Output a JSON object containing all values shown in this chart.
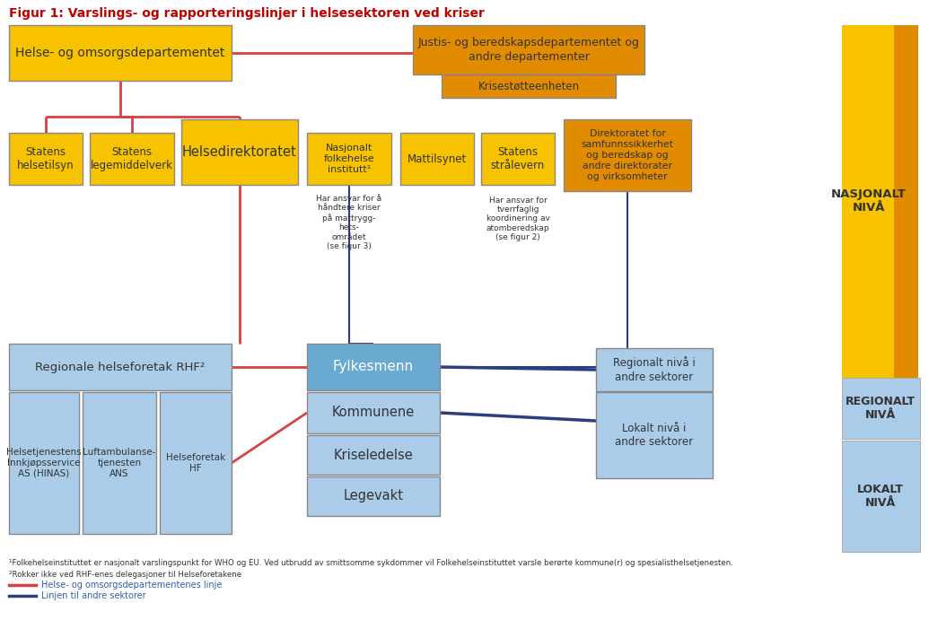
{
  "title": "Figur 1: Varslings- og rapporteringslinjer i helsesektoren ved kriser",
  "colors": {
    "yellow": "#F7C300",
    "orange": "#E08B00",
    "blue_light": "#AACCE8",
    "blue_mid": "#6BAAD0",
    "red_line": "#D94040",
    "navy_line": "#2B3F80",
    "text_dark": "#333333",
    "bg": "#FFFFFF"
  },
  "footnote1": "¹Folkehelseinstituttet er nasjonalt varslingspunkt for WHO og EU. Ved utbrudd av smittsomme sykdommer vil Folkehelseinstituttet varsle berørte kommune(r) og spesialisthelsetjenesten.",
  "footnote2": "²Rokker ikke ved RHF-enes delegasjoner til Helseforetakene",
  "legend1": "Helse- og omsorgsdepartementenes linje",
  "legend2": "Linjen til andre sektorer"
}
